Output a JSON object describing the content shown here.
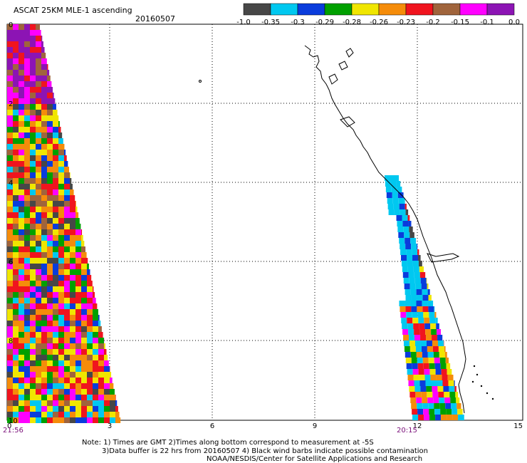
{
  "header": {
    "title": "ASCAT 25KM MLE-1 ascending",
    "date": "20160507"
  },
  "color_scale": {
    "colors": [
      "#474747",
      "#00c8f0",
      "#0a3cdc",
      "#00a000",
      "#f0e600",
      "#f58c0a",
      "#f0141e",
      "#a0643c",
      "#ff00ff",
      "#8c14b4"
    ],
    "labels": [
      "-1.0",
      "-0.35",
      "-0.3",
      "-0.29",
      "-0.28",
      "-0.26",
      "-0.23",
      "-0.2",
      "-0.15",
      "-0.1",
      "0.0"
    ]
  },
  "axis": {
    "x_ticks": [
      "0",
      "3",
      "6",
      "9",
      "12",
      "15"
    ],
    "time_left": "21:56",
    "time_right": "20:15",
    "y_ticks": [
      "0",
      "2",
      "4",
      "6",
      "8",
      "10"
    ]
  },
  "notes": {
    "line1": "Note: 1) Times are GMT 2)Times along bottom correspond to measurement at -5S",
    "line2": "3)Data buffer is 22 hrs from 20160507 4) Black wind barbs indicate possible contamination",
    "line3": "NOAA/NESDIS/Center for Satellite Applications and Research"
  },
  "swaths": [
    {
      "name": "left-swath",
      "palette": "mixed"
    },
    {
      "name": "right-swath",
      "palette": "coastal"
    }
  ]
}
